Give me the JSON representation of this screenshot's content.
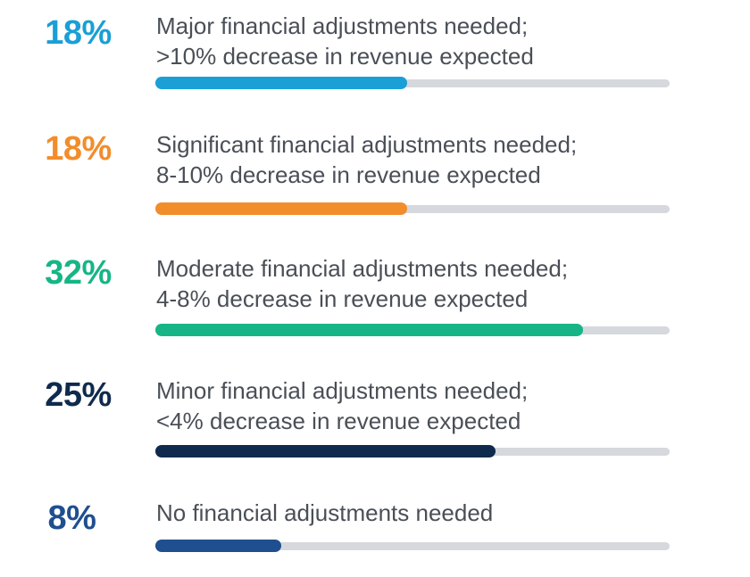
{
  "chart_data": {
    "type": "bar",
    "orientation": "horizontal",
    "rows": [
      {
        "percent_label": "18%",
        "line1": "Major financial adjustments needed;",
        "line2": ">10% decrease in revenue expected",
        "value": 18,
        "color": "#1a9fd6"
      },
      {
        "percent_label": "18%",
        "line1": "Significant financial adjustments needed;",
        "line2": "8-10% decrease in revenue expected",
        "value": 18,
        "color": "#f28d2b"
      },
      {
        "percent_label": "32%",
        "line1": "Moderate financial adjustments needed;",
        "line2": "4-8% decrease in revenue expected",
        "value": 32,
        "color": "#17b586"
      },
      {
        "percent_label": "25%",
        "line1": "Minor financial adjustments needed;",
        "line2": "<4% decrease in revenue expected",
        "value": 25,
        "color": "#0f2a4d"
      },
      {
        "percent_label": "8%",
        "line1": "No financial adjustments needed",
        "line2": "",
        "value": 8,
        "color": "#1f4f8f"
      }
    ],
    "track_color": "#d5d8dc"
  }
}
